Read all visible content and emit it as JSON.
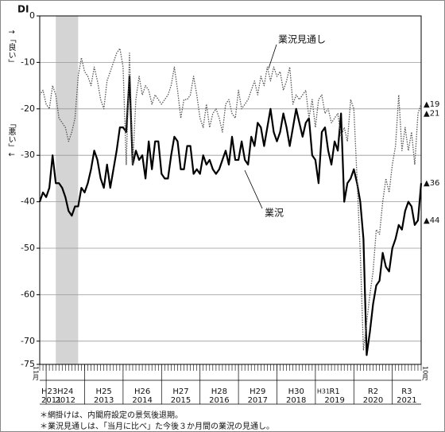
{
  "chart_data": {
    "type": "line",
    "y_title": "DI",
    "y_axis_labels": [
      "↑「良い」",
      "「悪い」↓"
    ],
    "x": [
      2011.833,
      2011.917,
      2012.0,
      2012.083,
      2012.167,
      2012.25,
      2012.333,
      2012.417,
      2012.5,
      2012.583,
      2012.667,
      2012.75,
      2012.833,
      2012.917,
      2013.0,
      2013.083,
      2013.167,
      2013.25,
      2013.333,
      2013.417,
      2013.5,
      2013.583,
      2013.667,
      2013.75,
      2013.833,
      2013.917,
      2014.0,
      2014.083,
      2014.167,
      2014.25,
      2014.333,
      2014.417,
      2014.5,
      2014.583,
      2014.667,
      2014.75,
      2014.833,
      2014.917,
      2015.0,
      2015.083,
      2015.167,
      2015.25,
      2015.333,
      2015.417,
      2015.5,
      2015.583,
      2015.667,
      2015.75,
      2015.833,
      2015.917,
      2016.0,
      2016.083,
      2016.167,
      2016.25,
      2016.333,
      2016.417,
      2016.5,
      2016.583,
      2016.667,
      2016.75,
      2016.833,
      2016.917,
      2017.0,
      2017.083,
      2017.167,
      2017.25,
      2017.333,
      2017.417,
      2017.5,
      2017.583,
      2017.667,
      2017.75,
      2017.833,
      2017.917,
      2018.0,
      2018.083,
      2018.167,
      2018.25,
      2018.333,
      2018.417,
      2018.5,
      2018.583,
      2018.667,
      2018.75,
      2018.833,
      2018.917,
      2019.0,
      2019.083,
      2019.167,
      2019.25,
      2019.333,
      2019.417,
      2019.5,
      2019.583,
      2019.667,
      2019.75,
      2019.833,
      2019.917,
      2020.0,
      2020.083,
      2020.167,
      2020.25,
      2020.333,
      2020.417,
      2020.5,
      2020.583,
      2020.667,
      2020.75,
      2020.833,
      2020.917,
      2021.0,
      2021.083,
      2021.167,
      2021.25,
      2021.333,
      2021.417,
      2021.5,
      2021.583,
      2021.667,
      2021.75
    ],
    "series": [
      {
        "name": "業況",
        "color": "#000000",
        "style": "solid",
        "values": [
          -40,
          -38,
          -39,
          -37,
          -30,
          -36,
          -36,
          -37,
          -39,
          -42,
          -43,
          -41,
          -41,
          -37,
          -38,
          -36,
          -33,
          -29,
          -31,
          -35,
          -37,
          -32,
          -37,
          -33,
          -29,
          -24,
          -24,
          -25,
          -13,
          -32,
          -29,
          -31,
          -30,
          -35,
          -27,
          -33,
          -27,
          -27,
          -34,
          -35,
          -35,
          -30,
          -26,
          -27,
          -33,
          -33,
          -28,
          -28,
          -34,
          -33,
          -34,
          -30,
          -32,
          -31,
          -33,
          -34,
          -33,
          -31,
          -29,
          -32,
          -26,
          -31,
          -31,
          -27,
          -31,
          -32,
          -26,
          -28,
          -23,
          -24,
          -28,
          -24,
          -20,
          -25,
          -27,
          -25,
          -21,
          -24,
          -28,
          -24,
          -20,
          -23,
          -26,
          -23,
          -22,
          -30,
          -31,
          -36,
          -25,
          -24,
          -29,
          -32,
          -27,
          -29,
          -21,
          -40,
          -36,
          -35,
          -33,
          -36,
          -40,
          -48,
          -73,
          -68,
          -62,
          -58,
          -57,
          -51,
          -54,
          -55,
          -50,
          -48,
          -45,
          -46,
          -42,
          -40,
          -41,
          -45,
          -44,
          -36
        ],
        "value_labels": [
          null,
          null,
          null,
          null,
          null,
          null,
          null,
          null,
          null,
          null,
          null,
          null,
          null,
          null,
          null,
          null,
          null,
          null,
          null,
          null,
          null,
          null,
          null,
          null,
          null,
          null,
          null,
          null,
          null,
          null,
          null,
          null,
          null,
          null,
          null,
          null,
          null,
          null,
          null,
          null,
          null,
          null,
          null,
          null,
          null,
          null,
          null,
          null,
          null,
          null,
          null,
          null,
          null,
          null,
          null,
          null,
          null,
          null,
          null,
          null,
          null,
          null,
          null,
          null,
          null,
          null,
          null,
          null,
          null,
          null,
          null,
          null,
          null,
          null,
          null,
          null,
          null,
          null,
          null,
          null,
          null,
          null,
          null,
          null,
          null,
          null,
          null,
          null,
          null,
          null,
          null,
          null,
          null,
          null,
          null,
          null,
          null,
          null,
          null,
          null,
          null,
          null,
          null,
          null,
          null,
          null,
          null,
          null,
          null,
          null,
          null,
          null,
          null,
          null,
          null,
          null,
          null,
          null,
          "▲44",
          "▲36"
        ]
      },
      {
        "name": "業況見通し",
        "color": "#555555",
        "style": "dotted",
        "values": [
          -17,
          -16,
          -19,
          -20,
          -15,
          -17,
          -22,
          -23,
          -24,
          -27,
          -25,
          -22,
          -13,
          -9,
          -12,
          -13,
          -15,
          -11,
          -14,
          -18,
          -20,
          -14,
          -12,
          -10,
          -8,
          -7,
          -11,
          -32,
          -8,
          -32,
          -18,
          -13,
          -17,
          -15,
          -16,
          -19,
          -17,
          -18,
          -19,
          -18,
          -17,
          -15,
          -11,
          -16,
          -22,
          -18,
          -18,
          -17,
          -13,
          -17,
          -22,
          -24,
          -19,
          -24,
          -21,
          -20,
          -22,
          -25,
          -19,
          -18,
          -21,
          -22,
          -16,
          -20,
          -19,
          -18,
          -16,
          -14,
          -17,
          -13,
          -15,
          -11,
          -14,
          -11,
          -13,
          -12,
          -16,
          -14,
          -11,
          -19,
          -17,
          -18,
          -17,
          -16,
          -22,
          -18,
          -24,
          -18,
          -17,
          -21,
          -20,
          -23,
          -22,
          -21,
          -26,
          -24,
          -27,
          -18,
          -20,
          -35,
          -51,
          -72,
          -66,
          -60,
          -55,
          -46,
          -47,
          -40,
          -35,
          -38,
          -32,
          -28,
          -17,
          -29,
          -24,
          -29,
          -25,
          -32,
          -21,
          -19
        ],
        "value_labels": [
          null,
          null,
          null,
          null,
          null,
          null,
          null,
          null,
          null,
          null,
          null,
          null,
          null,
          null,
          null,
          null,
          null,
          null,
          null,
          null,
          null,
          null,
          null,
          null,
          null,
          null,
          null,
          null,
          null,
          null,
          null,
          null,
          null,
          null,
          null,
          null,
          null,
          null,
          null,
          null,
          null,
          null,
          null,
          null,
          null,
          null,
          null,
          null,
          null,
          null,
          null,
          null,
          null,
          null,
          null,
          null,
          null,
          null,
          null,
          null,
          null,
          null,
          null,
          null,
          null,
          null,
          null,
          null,
          null,
          null,
          null,
          null,
          null,
          null,
          null,
          null,
          null,
          null,
          null,
          null,
          null,
          null,
          null,
          null,
          null,
          null,
          null,
          null,
          null,
          null,
          null,
          null,
          null,
          null,
          null,
          null,
          null,
          null,
          null,
          null,
          null,
          null,
          null,
          null,
          null,
          null,
          null,
          null,
          null,
          null,
          null,
          null,
          null,
          null,
          null,
          null,
          null,
          null,
          "▲21",
          "▲19"
        ]
      }
    ],
    "xlim": [
      2011.833,
      2021.75
    ],
    "xticks": [
      2012,
      2013,
      2014,
      2015,
      2016,
      2017,
      2018,
      2019,
      2020,
      2021
    ],
    "ylim": [
      -75,
      0
    ],
    "yticks": [
      0,
      -10,
      -20,
      -30,
      -40,
      -50,
      -60,
      -70,
      -75
    ],
    "grid": true,
    "shade": [
      2012.25,
      2012.833
    ],
    "start_label": "11月",
    "end_label": "10月",
    "year_labels": [
      {
        "year": 2011,
        "era": [
          "H23"
        ]
      },
      {
        "year": 2012,
        "era": [
          "H24"
        ]
      },
      {
        "year": 2013,
        "era": [
          "H25"
        ]
      },
      {
        "year": 2014,
        "era": [
          "H26"
        ]
      },
      {
        "year": 2015,
        "era": [
          "H27"
        ]
      },
      {
        "year": 2016,
        "era": [
          "H28"
        ]
      },
      {
        "year": 2017,
        "era": [
          "H29"
        ]
      },
      {
        "year": 2018,
        "era": [
          "H30"
        ]
      },
      {
        "year": 2019,
        "era": [
          "H31",
          "R1"
        ]
      },
      {
        "year": 2020,
        "era": [
          "R2"
        ]
      },
      {
        "year": 2021,
        "era": [
          "R3"
        ]
      }
    ],
    "notes": [
      "＊網掛けは、内閣府設定の景気後退期。",
      "＊業況見通しは、「当月に比べ」た今後３か月間の業況の見通し。"
    ]
  }
}
